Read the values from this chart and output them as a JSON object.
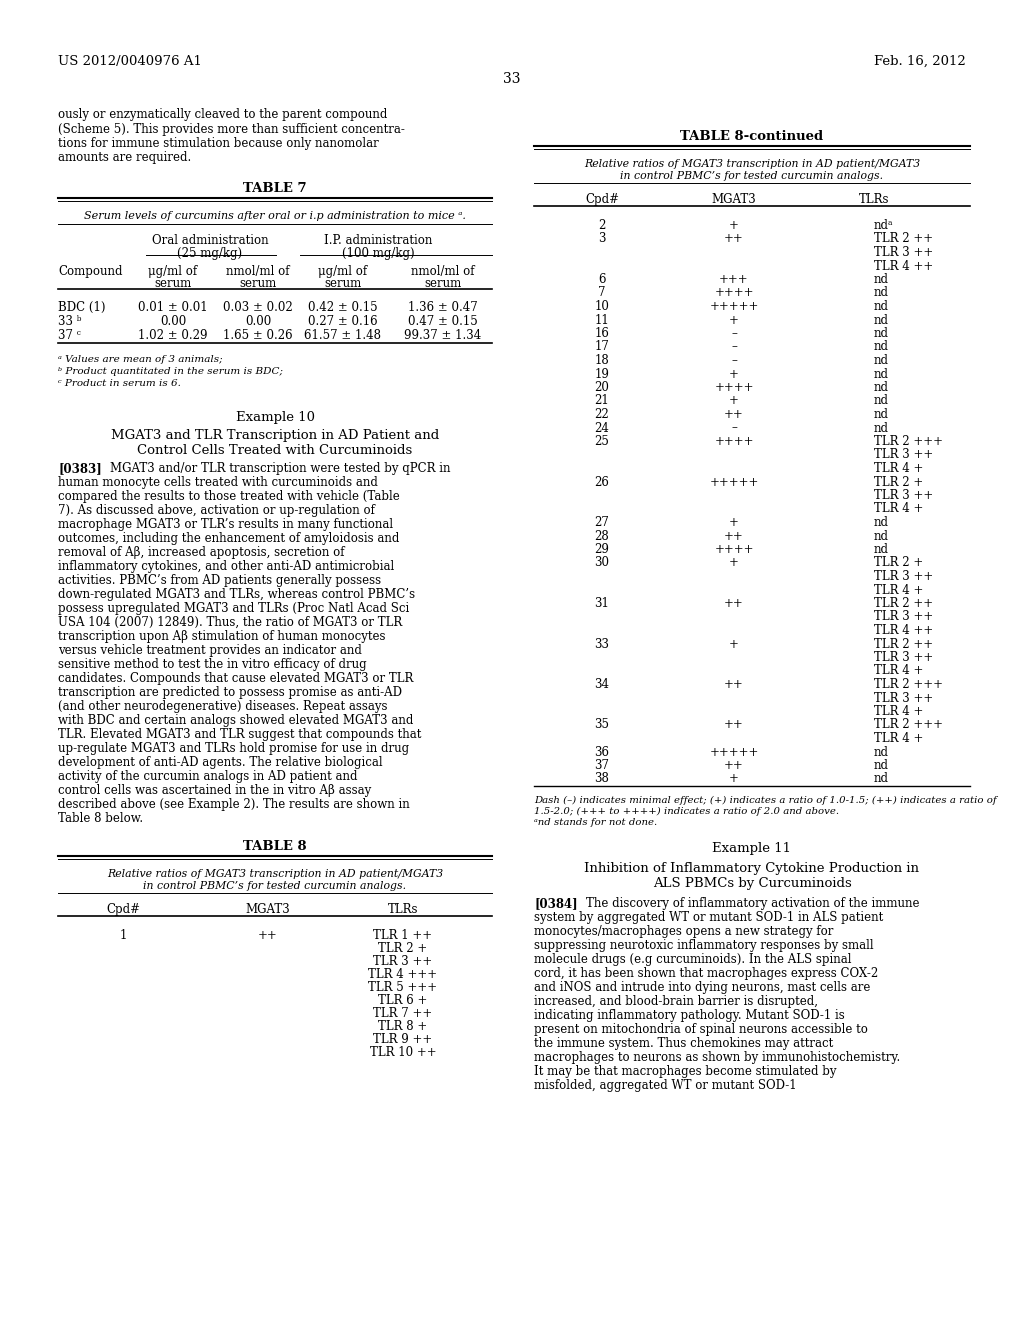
{
  "page_header_left": "US 2012/0040976 A1",
  "page_header_right": "Feb. 16, 2012",
  "page_number": "33",
  "bg_color": "#ffffff",
  "left_col": {
    "intro_text": [
      "ously or enzymatically cleaved to the parent compound",
      "(Scheme 5). This provides more than sufficient concentra-",
      "tions for immune stimulation because only nanomolar",
      "amounts are required."
    ],
    "table7_title": "TABLE 7",
    "table7_subtitle": "Serum levels of curcumins after oral or i.p administration to mice ᵃ.",
    "table7_rows": [
      [
        "BDC (1)",
        "0.01 ± 0.01",
        "0.03 ± 0.02",
        "0.42 ± 0.15",
        "1.36 ± 0.47"
      ],
      [
        "33 ᵇ",
        "0.00",
        "0.00",
        "0.27 ± 0.16",
        "0.47 ± 0.15"
      ],
      [
        "37 ᶜ",
        "1.02 ± 0.29",
        "1.65 ± 0.26",
        "61.57 ± 1.48",
        "99.37 ± 1.34"
      ]
    ],
    "table7_footnotes": [
      "ᵃ Values are mean of 3 animals;",
      "ᵇ Product quantitated in the serum is BDC;",
      "ᶜ Product in serum is 6."
    ],
    "example10_heading": "Example 10",
    "example10_title_line1": "MGAT3 and TLR Transcription in AD Patient and",
    "example10_title_line2": "Control Cells Treated with Curcuminoids",
    "para383_label": "[0383]",
    "para383_text": "MGAT3 and/or TLR transcription were tested by qPCR in human monocyte cells treated with curcuminoids and compared the results to those treated with vehicle (Table 7). As discussed above, activation or up-regulation of macrophage MGAT3 or TLR’s results in many functional outcomes, including the enhancement of amyloidosis and removal of Aβ, increased apoptosis, secretion of inflammatory cytokines, and other anti-AD antimicrobial activities. PBMC’s from AD patients generally possess down-regulated MGAT3 and TLRs, whereas control PBMC’s possess upregulated MGAT3 and TLRs (Proc Natl Acad Sci USA 104 (2007) 12849). Thus, the ratio of MGAT3 or TLR transcription upon Aβ stimulation of human monocytes versus vehicle treatment provides an indicator and sensitive method to test the in vitro efficacy of drug candidates. Compounds that cause elevated MGAT3 or TLR transcription are predicted to possess promise as anti-AD (and other neurodegenerative) diseases. Repeat assays with BDC and certain analogs showed elevated MGAT3 and TLR. Elevated MGAT3 and TLR suggest that compounds that up-regulate MGAT3 and TLRs hold promise for use in drug development of anti-AD agents. The relative biological activity of the curcumin analogs in AD patient and control cells was ascertained in the in vitro Aβ assay described above (see Example 2). The results are shown in Table 8 below.",
    "table8_title": "TABLE 8",
    "table8_subtitle_line1": "Relative ratios of MGAT3 transcription in AD patient/MGAT3",
    "table8_subtitle_line2": "in control PBMC’s for tested curcumin analogs.",
    "table8_row": [
      "1",
      "++",
      "TLR 1 ++",
      "TLR 2 +",
      "TLR 3 ++",
      "TLR 4 +++",
      "TLR 5 +++",
      "TLR 6 +",
      "TLR 7 ++",
      "TLR 8 +",
      "TLR 9 ++",
      "TLR 10 ++"
    ]
  },
  "right_col": {
    "table8cont_title": "TABLE 8-continued",
    "table8cont_subtitle_line1": "Relative ratios of MGAT3 transcription in AD patient/MGAT3",
    "table8cont_subtitle_line2": "in control PBMC’s for tested curcumin analogs.",
    "table8cont_rows": [
      [
        "2",
        "+",
        [
          "ndᵃ"
        ]
      ],
      [
        "3",
        "++",
        [
          "TLR 2 ++",
          "TLR 3 ++",
          "TLR 4 ++"
        ]
      ],
      [
        "6",
        "+++",
        [
          "nd"
        ]
      ],
      [
        "7",
        "++++",
        [
          "nd"
        ]
      ],
      [
        "10",
        "+++++",
        [
          "nd"
        ]
      ],
      [
        "11",
        "+",
        [
          "nd"
        ]
      ],
      [
        "16",
        "–",
        [
          "nd"
        ]
      ],
      [
        "17",
        "–",
        [
          "nd"
        ]
      ],
      [
        "18",
        "–",
        [
          "nd"
        ]
      ],
      [
        "19",
        "+",
        [
          "nd"
        ]
      ],
      [
        "20",
        "++++",
        [
          "nd"
        ]
      ],
      [
        "21",
        "+",
        [
          "nd"
        ]
      ],
      [
        "22",
        "++",
        [
          "nd"
        ]
      ],
      [
        "24",
        "–",
        [
          "nd"
        ]
      ],
      [
        "25",
        "++++",
        [
          "TLR 2 +++",
          "TLR 3 ++",
          "TLR 4 +"
        ]
      ],
      [
        "26",
        "+++++",
        [
          "TLR 2 +",
          "TLR 3 ++",
          "TLR 4 +"
        ]
      ],
      [
        "27",
        "+",
        [
          "nd"
        ]
      ],
      [
        "28",
        "++",
        [
          "nd"
        ]
      ],
      [
        "29",
        "++++",
        [
          "nd"
        ]
      ],
      [
        "30",
        "+",
        [
          "TLR 2 +",
          "TLR 3 ++",
          "TLR 4 +"
        ]
      ],
      [
        "31",
        "++",
        [
          "TLR 2 ++",
          "TLR 3 ++",
          "TLR 4 ++"
        ]
      ],
      [
        "33",
        "+",
        [
          "TLR 2 ++",
          "TLR 3 ++",
          "TLR 4 +"
        ]
      ],
      [
        "34",
        "++",
        [
          "TLR 2 +++",
          "TLR 3 ++",
          "TLR 4 +"
        ]
      ],
      [
        "35",
        "++",
        [
          "TLR 2 +++",
          "TLR 4 +"
        ]
      ],
      [
        "36",
        "+++++",
        [
          "nd"
        ]
      ],
      [
        "37",
        "++",
        [
          "nd"
        ]
      ],
      [
        "38",
        "+",
        [
          "nd"
        ]
      ]
    ],
    "table8cont_footnote1": "Dash (–) indicates minimal effect; (+) indicates a ratio of 1.0-1.5; (++) indicates a ratio of",
    "table8cont_footnote2": "1.5-2.0; (+++ to ++++) indicates a ratio of 2.0 and above.",
    "table8cont_footnote3": "ᵃnd stands for not done.",
    "example11_heading": "Example 11",
    "example11_title_line1": "Inhibition of Inflammatory Cytokine Production in",
    "example11_title_line2": "ALS PBMCs by Curcuminoids",
    "para384_label": "[0384]",
    "para384_text": "The discovery of inflammatory activation of the immune system by aggregated WT or mutant SOD-1 in ALS patient monocytes/macrophages opens a new strategy for suppressing neurotoxic inflammatory responses by small molecule drugs (e.g curcuminoids). In the ALS spinal cord, it has been shown that macrophages express COX-2 and iNOS and intrude into dying neurons, mast cells are increased, and blood-brain barrier is disrupted, indicating inflammatory pathology. Mutant SOD-1 is present on mitochondria of spinal neurons accessible to the immune system. Thus chemokines may attract macrophages to neurons as shown by immunohistochemistry. It may be that macrophages become stimulated by misfolded, aggregated WT or mutant SOD-1"
  }
}
